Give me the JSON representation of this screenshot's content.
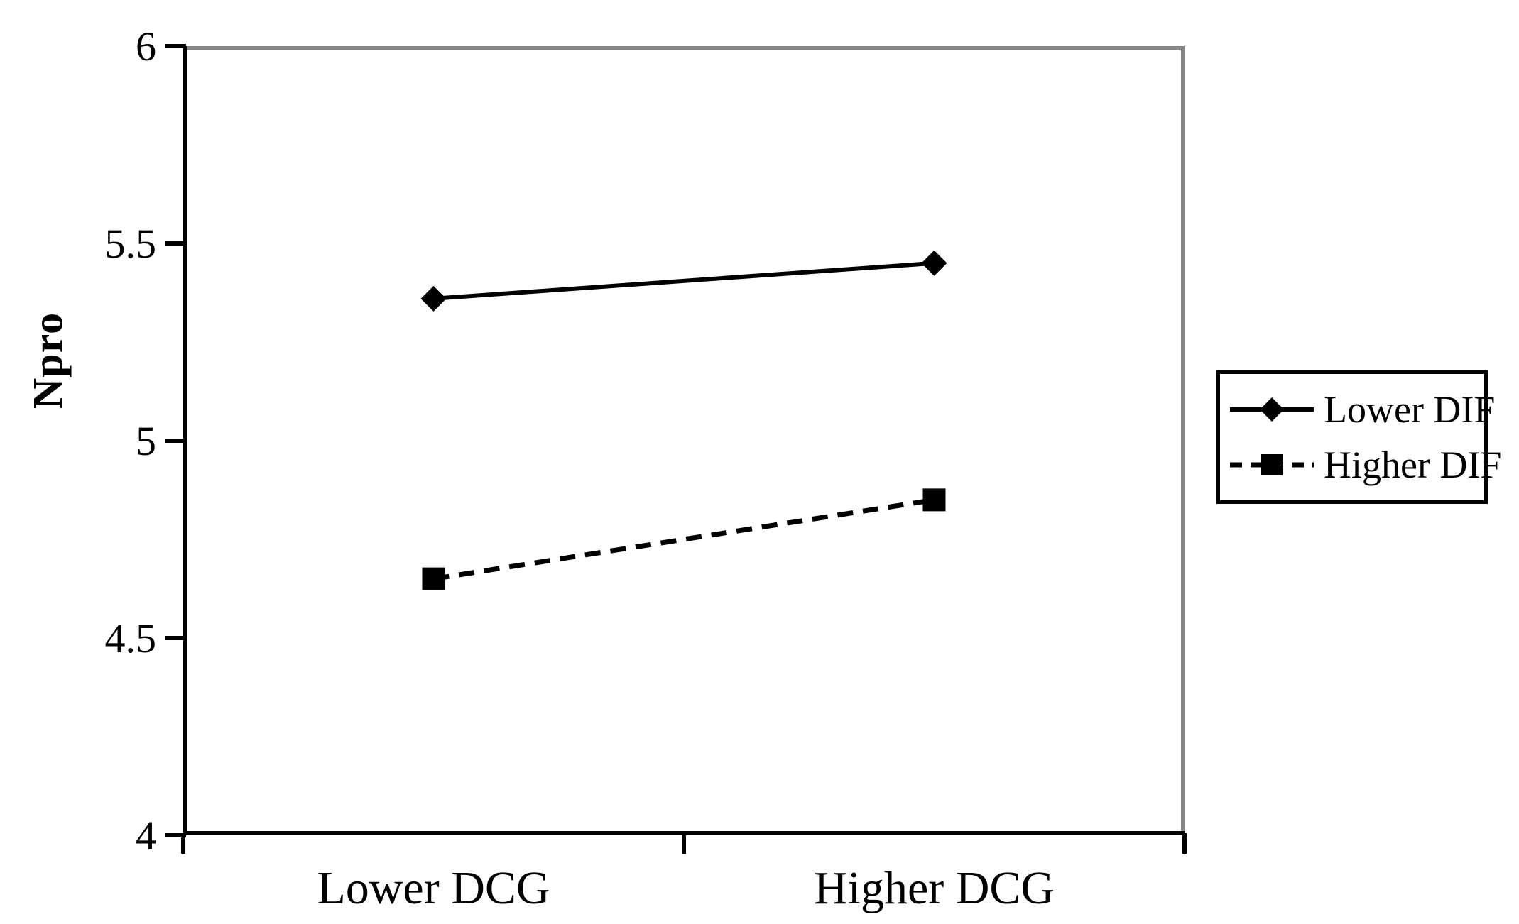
{
  "figure": {
    "background": "#ffffff"
  },
  "chart_data": {
    "type": "line",
    "title": "",
    "xlabel": "",
    "ylabel": "Npro",
    "categories": [
      "Lower DCG",
      "Higher DCG"
    ],
    "series": [
      {
        "name": "Lower DIF",
        "values": [
          5.36,
          5.45
        ],
        "line_style": "solid",
        "marker": "diamond",
        "color": "#000000"
      },
      {
        "name": "Higher DIF",
        "values": [
          4.65,
          4.85
        ],
        "line_style": "dashed",
        "marker": "square",
        "color": "#000000"
      }
    ],
    "ylim": [
      4,
      6
    ],
    "yticks": [
      4,
      4.5,
      5,
      5.5,
      6
    ],
    "grid": false,
    "legend_position": "right",
    "colors": {
      "axis": "#000000",
      "plot_border": "#858585",
      "text": "#000000"
    }
  }
}
